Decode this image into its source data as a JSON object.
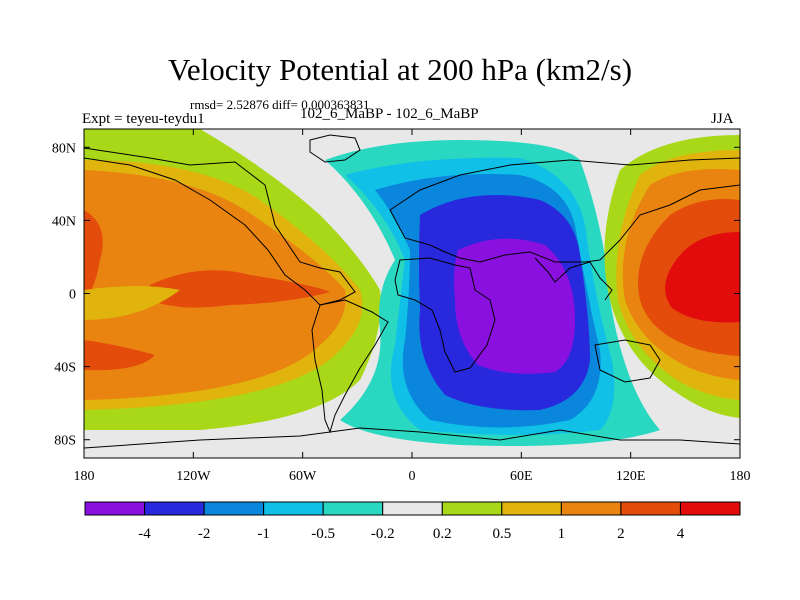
{
  "header": {
    "title": "Velocity Potential at 200 hPa (km2/s)",
    "stats": "rmsd= 2.52876 diff= 0.000363831",
    "left_label": "Expt = teyeu-teydu1",
    "center_label": "102_6_MaBP - 102_6_MaBP",
    "right_label": "JJA"
  },
  "chart_data": {
    "type": "heatmap",
    "title": "Velocity Potential at 200 hPa (km2/s)",
    "subtitle": "rmsd= 2.52876 diff= 0.000363831",
    "units": "km2/s",
    "season": "JJA",
    "x_range": [
      -180,
      180
    ],
    "y_range": [
      -90,
      90
    ],
    "x_ticks": [
      {
        "value": -180,
        "label": "180"
      },
      {
        "value": -120,
        "label": "120W"
      },
      {
        "value": -60,
        "label": "60W"
      },
      {
        "value": 0,
        "label": "0"
      },
      {
        "value": 60,
        "label": "60E"
      },
      {
        "value": 120,
        "label": "120E"
      },
      {
        "value": 180,
        "label": "180"
      }
    ],
    "y_ticks": [
      {
        "value": 80,
        "label": "80N"
      },
      {
        "value": 40,
        "label": "40N"
      },
      {
        "value": 0,
        "label": "0"
      },
      {
        "value": -40,
        "label": "40S"
      },
      {
        "value": -80,
        "label": "80S"
      }
    ],
    "colorbar": {
      "labels": [
        "-4",
        "-2",
        "-1",
        "-0.5",
        "-0.2",
        "0.2",
        "0.5",
        "1",
        "2",
        "4"
      ],
      "colors": [
        "#8a10e0",
        "#2828dd",
        "#0a86dc",
        "#10c0e6",
        "#2ad8c2",
        "#e8e8e8",
        "#a8d818",
        "#e0b40c",
        "#ea8410",
        "#e44c0c",
        "#e20c0c"
      ]
    },
    "field_centers": [
      {
        "name": "min-africa-indian-ocean",
        "lon": 45,
        "lat": 0,
        "value": -5
      },
      {
        "name": "min-northern-asia-flank",
        "lon": 30,
        "lat": 55,
        "value": -1.5
      },
      {
        "name": "max-west-pacific",
        "lon": 160,
        "lat": 10,
        "value": 5
      },
      {
        "name": "max-central-pacific-north",
        "lon": -175,
        "lat": 25,
        "value": 4
      },
      {
        "name": "max-eastern-pacific",
        "lon": -135,
        "lat": -5,
        "value": 3
      },
      {
        "name": "max-south-pacific",
        "lon": -175,
        "lat": -30,
        "value": 2.5
      }
    ]
  }
}
